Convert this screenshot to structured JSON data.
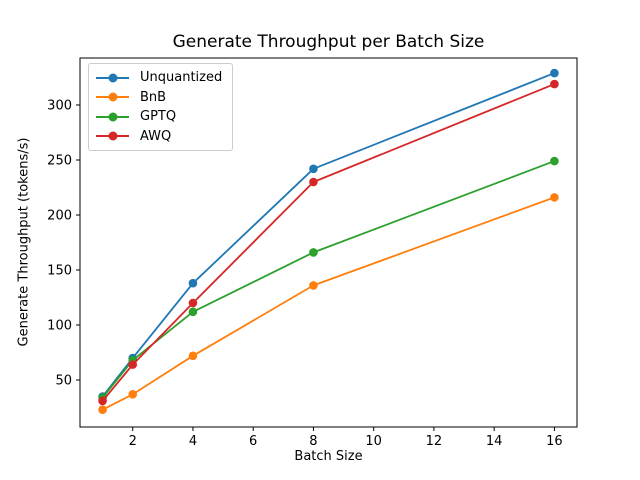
{
  "figure": {
    "background": "#ffffff",
    "frame_color": "#000000"
  },
  "chart_data": {
    "type": "line",
    "title": "Generate Throughput per Batch Size",
    "xlabel": "Batch Size",
    "ylabel": "Generate Throughput (tokens/s)",
    "x": [
      1,
      2,
      4,
      8,
      16
    ],
    "series": [
      {
        "name": "Unquantized",
        "color": "#1f77b4",
        "values": [
          35,
          70,
          138,
          242,
          329
        ]
      },
      {
        "name": "BnB",
        "color": "#ff7f0e",
        "values": [
          23,
          37,
          72,
          136,
          216
        ]
      },
      {
        "name": "GPTQ",
        "color": "#2ca02c",
        "values": [
          34,
          68,
          112,
          166,
          249
        ]
      },
      {
        "name": "AWQ",
        "color": "#d62728",
        "values": [
          31,
          64,
          120,
          230,
          319
        ]
      }
    ],
    "x_ticks": [
      2,
      4,
      6,
      8,
      10,
      12,
      14,
      16
    ],
    "y_ticks": [
      50,
      100,
      150,
      200,
      250,
      300
    ],
    "xlim": [
      0.25,
      16.75
    ],
    "ylim": [
      7.3,
      342.7
    ],
    "grid": false,
    "marker": "o",
    "legend_position": "upper-left"
  }
}
